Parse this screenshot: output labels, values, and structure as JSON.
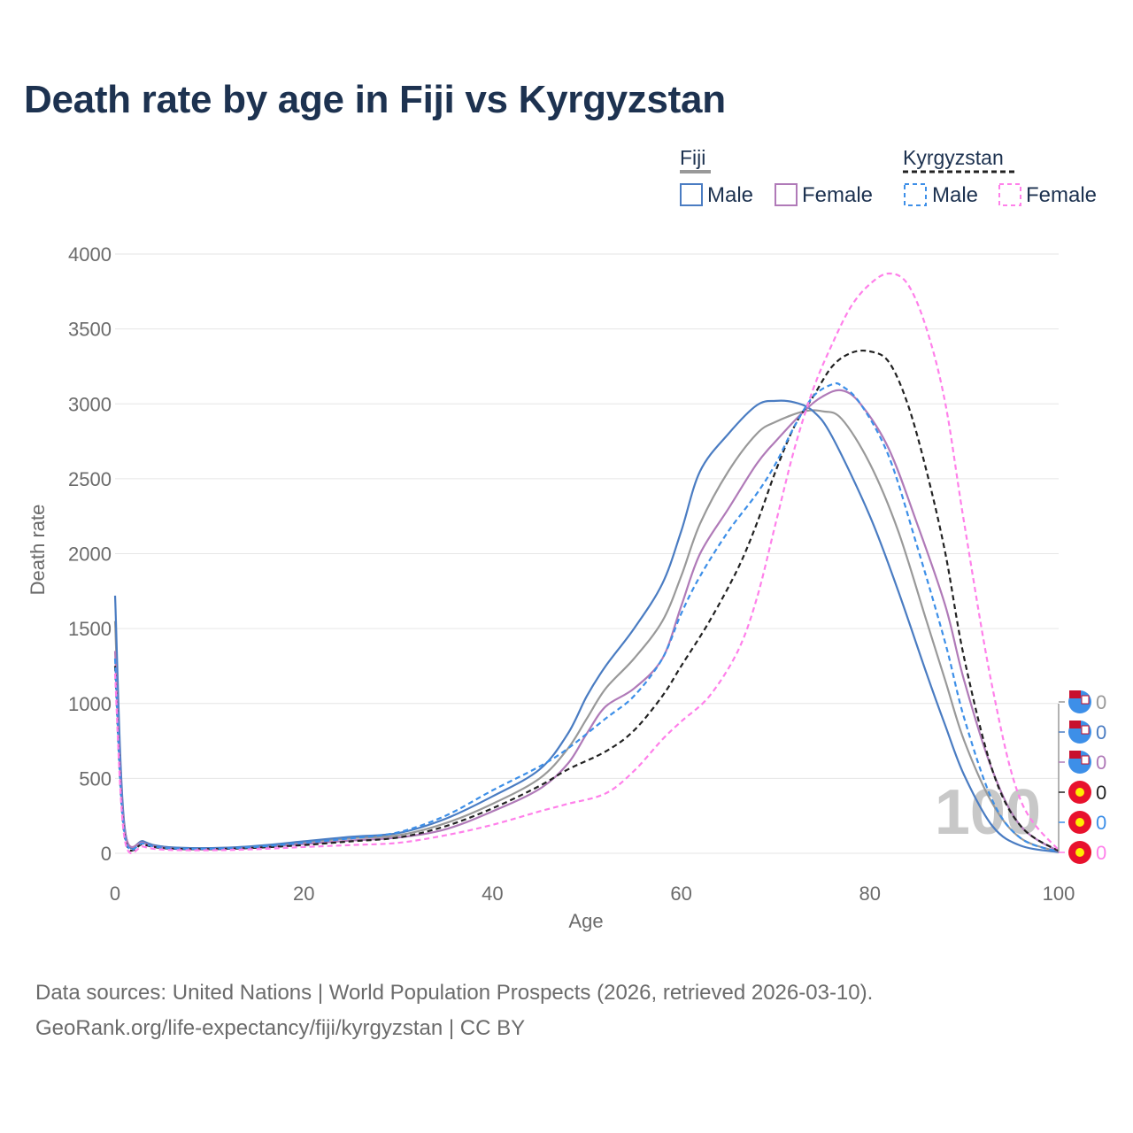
{
  "title": "Death rate by age in Fiji vs Kyrgyzstan",
  "legend": {
    "groups": [
      {
        "name": "Fiji",
        "swatch_color": "#999999",
        "dashed": false
      },
      {
        "name": "Kyrgyzstan",
        "swatch_color": "#222222",
        "dashed": true
      }
    ],
    "entries": [
      {
        "label": "Male",
        "color": "#4a7cc2",
        "dashed": false
      },
      {
        "label": "Female",
        "color": "#b07ab8",
        "dashed": false
      },
      {
        "label": "Male",
        "color": "#3d8fe8",
        "dashed": true
      },
      {
        "label": "Female",
        "color": "#ff80ea",
        "dashed": true
      }
    ]
  },
  "year_watermark": "100",
  "end_markers": [
    {
      "flag": "fiji",
      "value": "0",
      "color": "#999999"
    },
    {
      "flag": "fiji",
      "value": "0",
      "color": "#4a7cc2"
    },
    {
      "flag": "fiji",
      "value": "0",
      "color": "#b07ab8"
    },
    {
      "flag": "kyrgyzstan",
      "value": "0",
      "color": "#222222"
    },
    {
      "flag": "kyrgyzstan",
      "value": "0",
      "color": "#3d8fe8"
    },
    {
      "flag": "kyrgyzstan",
      "value": "0",
      "color": "#ff80ea"
    }
  ],
  "footer": {
    "source": "Data sources: United Nations | World Population Prospects (2026, retrieved 2026-03-10).",
    "url": "GeoRank.org/life-expectancy/fiji/kyrgyzstan | CC BY"
  },
  "chart_data": {
    "type": "line",
    "title": "Death rate by age in Fiji vs Kyrgyzstan",
    "xlabel": "Age",
    "ylabel": "Death rate",
    "xlim": [
      0,
      100
    ],
    "ylim": [
      0,
      4000
    ],
    "x_ticks": [
      0,
      20,
      40,
      60,
      80,
      100
    ],
    "y_ticks": [
      0,
      500,
      1000,
      1500,
      2000,
      2500,
      3000,
      3500,
      4000
    ],
    "grid": true,
    "legend_position": "top-right",
    "series": [
      {
        "name": "Fiji Total",
        "color": "#999999",
        "dashed": false,
        "points": [
          [
            0,
            1550
          ],
          [
            1,
            170
          ],
          [
            3,
            80
          ],
          [
            5,
            45
          ],
          [
            8,
            35
          ],
          [
            12,
            38
          ],
          [
            16,
            50
          ],
          [
            20,
            75
          ],
          [
            25,
            100
          ],
          [
            30,
            120
          ],
          [
            35,
            200
          ],
          [
            40,
            330
          ],
          [
            45,
            500
          ],
          [
            48,
            700
          ],
          [
            50,
            900
          ],
          [
            52,
            1100
          ],
          [
            55,
            1300
          ],
          [
            58,
            1550
          ],
          [
            60,
            1850
          ],
          [
            62,
            2200
          ],
          [
            65,
            2550
          ],
          [
            68,
            2800
          ],
          [
            70,
            2880
          ],
          [
            73,
            2950
          ],
          [
            75,
            2950
          ],
          [
            77,
            2900
          ],
          [
            80,
            2600
          ],
          [
            83,
            2150
          ],
          [
            86,
            1550
          ],
          [
            88,
            1150
          ],
          [
            90,
            750
          ],
          [
            93,
            330
          ],
          [
            96,
            100
          ],
          [
            100,
            10
          ]
        ]
      },
      {
        "name": "Fiji Male",
        "color": "#4a7cc2",
        "dashed": false,
        "points": [
          [
            0,
            1720
          ],
          [
            1,
            180
          ],
          [
            3,
            80
          ],
          [
            5,
            45
          ],
          [
            8,
            35
          ],
          [
            12,
            38
          ],
          [
            16,
            55
          ],
          [
            20,
            80
          ],
          [
            25,
            110
          ],
          [
            30,
            135
          ],
          [
            35,
            230
          ],
          [
            40,
            380
          ],
          [
            45,
            560
          ],
          [
            48,
            800
          ],
          [
            50,
            1050
          ],
          [
            52,
            1250
          ],
          [
            55,
            1500
          ],
          [
            58,
            1800
          ],
          [
            60,
            2150
          ],
          [
            62,
            2550
          ],
          [
            65,
            2800
          ],
          [
            68,
            2990
          ],
          [
            70,
            3020
          ],
          [
            72,
            3010
          ],
          [
            74,
            2950
          ],
          [
            76,
            2780
          ],
          [
            80,
            2250
          ],
          [
            83,
            1750
          ],
          [
            86,
            1200
          ],
          [
            88,
            850
          ],
          [
            90,
            520
          ],
          [
            93,
            180
          ],
          [
            96,
            50
          ],
          [
            100,
            8
          ]
        ]
      },
      {
        "name": "Fiji Female",
        "color": "#b07ab8",
        "dashed": false,
        "points": [
          [
            0,
            1350
          ],
          [
            1,
            160
          ],
          [
            3,
            70
          ],
          [
            5,
            38
          ],
          [
            8,
            28
          ],
          [
            12,
            30
          ],
          [
            16,
            42
          ],
          [
            20,
            62
          ],
          [
            25,
            85
          ],
          [
            30,
            105
          ],
          [
            35,
            160
          ],
          [
            40,
            280
          ],
          [
            45,
            430
          ],
          [
            48,
            600
          ],
          [
            50,
            800
          ],
          [
            52,
            980
          ],
          [
            55,
            1100
          ],
          [
            58,
            1300
          ],
          [
            60,
            1650
          ],
          [
            62,
            2000
          ],
          [
            65,
            2300
          ],
          [
            68,
            2600
          ],
          [
            70,
            2750
          ],
          [
            73,
            2950
          ],
          [
            75,
            3050
          ],
          [
            77,
            3090
          ],
          [
            79,
            3000
          ],
          [
            82,
            2700
          ],
          [
            85,
            2200
          ],
          [
            88,
            1650
          ],
          [
            90,
            1150
          ],
          [
            93,
            550
          ],
          [
            96,
            180
          ],
          [
            100,
            12
          ]
        ]
      },
      {
        "name": "Kyrgyzstan Total",
        "color": "#222222",
        "dashed": true,
        "points": [
          [
            0,
            1250
          ],
          [
            1,
            120
          ],
          [
            3,
            60
          ],
          [
            5,
            35
          ],
          [
            8,
            28
          ],
          [
            12,
            30
          ],
          [
            16,
            40
          ],
          [
            20,
            55
          ],
          [
            25,
            80
          ],
          [
            30,
            105
          ],
          [
            35,
            180
          ],
          [
            40,
            300
          ],
          [
            45,
            450
          ],
          [
            48,
            560
          ],
          [
            52,
            680
          ],
          [
            55,
            820
          ],
          [
            58,
            1050
          ],
          [
            60,
            1250
          ],
          [
            63,
            1550
          ],
          [
            66,
            1900
          ],
          [
            68,
            2200
          ],
          [
            70,
            2550
          ],
          [
            72,
            2850
          ],
          [
            74,
            3050
          ],
          [
            76,
            3250
          ],
          [
            78,
            3340
          ],
          [
            80,
            3350
          ],
          [
            82,
            3280
          ],
          [
            84,
            3000
          ],
          [
            86,
            2550
          ],
          [
            88,
            2000
          ],
          [
            90,
            1300
          ],
          [
            93,
            550
          ],
          [
            96,
            180
          ],
          [
            100,
            15
          ]
        ]
      },
      {
        "name": "Kyrgyzstan Male",
        "color": "#3d8fe8",
        "dashed": true,
        "points": [
          [
            0,
            1300
          ],
          [
            1,
            130
          ],
          [
            3,
            65
          ],
          [
            5,
            38
          ],
          [
            8,
            30
          ],
          [
            12,
            33
          ],
          [
            16,
            48
          ],
          [
            20,
            70
          ],
          [
            25,
            100
          ],
          [
            30,
            140
          ],
          [
            35,
            250
          ],
          [
            40,
            420
          ],
          [
            45,
            580
          ],
          [
            48,
            700
          ],
          [
            52,
            900
          ],
          [
            55,
            1050
          ],
          [
            58,
            1300
          ],
          [
            60,
            1600
          ],
          [
            62,
            1850
          ],
          [
            65,
            2150
          ],
          [
            68,
            2400
          ],
          [
            70,
            2600
          ],
          [
            72,
            2850
          ],
          [
            74,
            3050
          ],
          [
            76,
            3130
          ],
          [
            77,
            3120
          ],
          [
            79,
            3000
          ],
          [
            82,
            2650
          ],
          [
            85,
            2050
          ],
          [
            88,
            1400
          ],
          [
            90,
            900
          ],
          [
            93,
            350
          ],
          [
            96,
            100
          ],
          [
            100,
            10
          ]
        ]
      },
      {
        "name": "Kyrgyzstan Female",
        "color": "#ff80ea",
        "dashed": true,
        "points": [
          [
            0,
            1200
          ],
          [
            1,
            100
          ],
          [
            3,
            45
          ],
          [
            5,
            25
          ],
          [
            8,
            20
          ],
          [
            12,
            22
          ],
          [
            16,
            30
          ],
          [
            20,
            42
          ],
          [
            25,
            55
          ],
          [
            30,
            70
          ],
          [
            35,
            120
          ],
          [
            40,
            190
          ],
          [
            45,
            280
          ],
          [
            48,
            330
          ],
          [
            52,
            400
          ],
          [
            55,
            550
          ],
          [
            58,
            760
          ],
          [
            60,
            880
          ],
          [
            63,
            1050
          ],
          [
            66,
            1350
          ],
          [
            68,
            1700
          ],
          [
            70,
            2200
          ],
          [
            72,
            2700
          ],
          [
            74,
            3100
          ],
          [
            76,
            3400
          ],
          [
            78,
            3650
          ],
          [
            80,
            3800
          ],
          [
            82,
            3870
          ],
          [
            84,
            3800
          ],
          [
            86,
            3500
          ],
          [
            88,
            3000
          ],
          [
            90,
            2200
          ],
          [
            93,
            1100
          ],
          [
            96,
            350
          ],
          [
            100,
            20
          ]
        ]
      }
    ]
  }
}
